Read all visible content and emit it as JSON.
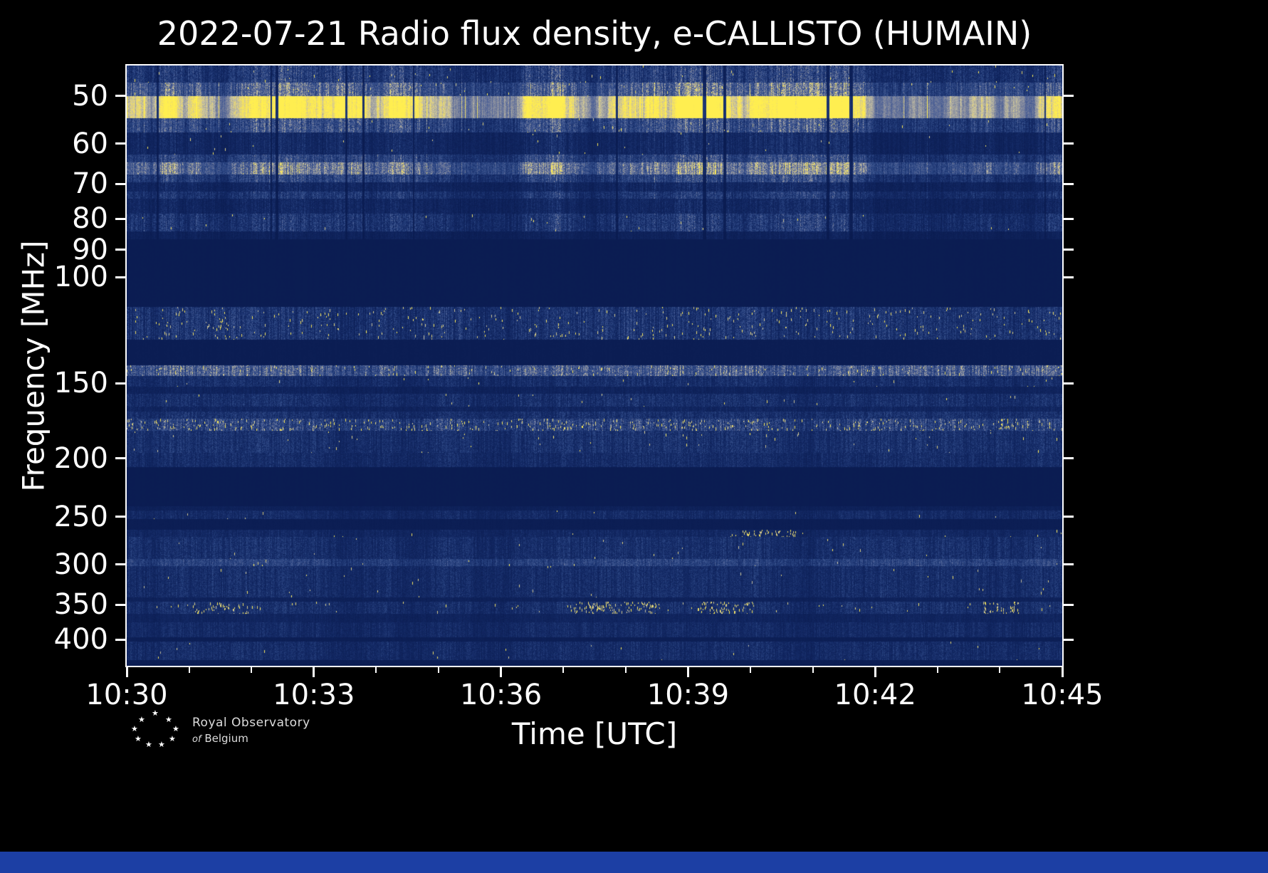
{
  "title": "2022-07-21 Radio flux density, e-CALLISTO (HUMAIN)",
  "xlabel": "Time [UTC]",
  "ylabel": "Frequency [MHz]",
  "logo": {
    "star_glyph": "★",
    "line1": "Royal Observatory",
    "line2_italic": "of",
    "line2_rest": "Belgium"
  },
  "colors": {
    "figure_background": "#000000",
    "text": "#ffffff",
    "bottom_bar": "#1c3fa4",
    "quiet_navy": "#0a1c52",
    "bright_yellow": "#ffee50"
  },
  "chart_data": {
    "type": "heatmap",
    "subtype": "radio-spectrogram",
    "title": "2022-07-21 Radio flux density, e-CALLISTO (HUMAIN)",
    "date": "2022-07-21",
    "instrument": "e-CALLISTO",
    "station": "HUMAIN",
    "xlabel": "Time [UTC]",
    "ylabel": "Frequency [MHz]",
    "x_start": "10:30",
    "x_end": "10:45",
    "duration_min": 15,
    "x_ticks": [
      {
        "min": 0,
        "label": "10:30"
      },
      {
        "min": 3,
        "label": "10:33"
      },
      {
        "min": 6,
        "label": "10:36"
      },
      {
        "min": 9,
        "label": "10:39"
      },
      {
        "min": 12,
        "label": "10:42"
      },
      {
        "min": 15,
        "label": "10:45"
      }
    ],
    "x_minor_every_min": 1,
    "y_scale": "log",
    "y_axis_inverted_low_at_top": true,
    "freq_min": 44.5,
    "freq_max": 442,
    "y_ticks": [
      {
        "f": 50,
        "label": "50"
      },
      {
        "f": 60,
        "label": "60"
      },
      {
        "f": 70,
        "label": "70"
      },
      {
        "f": 80,
        "label": "80"
      },
      {
        "f": 90,
        "label": "90"
      },
      {
        "f": 100,
        "label": "100"
      },
      {
        "f": 150,
        "label": "150"
      },
      {
        "f": 200,
        "label": "200"
      },
      {
        "f": 250,
        "label": "250"
      },
      {
        "f": 300,
        "label": "300"
      },
      {
        "f": 350,
        "label": "350"
      },
      {
        "f": 400,
        "label": "400"
      }
    ],
    "legend": "none",
    "grid": false,
    "colormap": [
      [
        0.0,
        "#091a4e"
      ],
      [
        0.18,
        "#142a66"
      ],
      [
        0.35,
        "#2c4784"
      ],
      [
        0.5,
        "#4b5f95"
      ],
      [
        0.65,
        "#8a8fa0"
      ],
      [
        0.8,
        "#c9c3a2"
      ],
      [
        0.9,
        "#ecd96e"
      ],
      [
        1.0,
        "#ffee50"
      ]
    ],
    "background_level": 0.03,
    "seed": 20220721,
    "bands": [
      {
        "f_start": 44.5,
        "f_end": 47.5,
        "level": 0.3,
        "col_var": 0.35,
        "pix_var": 0.5,
        "speckle": 0.001,
        "region": "top"
      },
      {
        "f_start": 47.5,
        "f_end": 50.0,
        "level": 0.5,
        "col_var": 0.3,
        "pix_var": 0.35,
        "speckle": 0.002,
        "region": "top"
      },
      {
        "f_start": 50.0,
        "f_end": 54.5,
        "level": 0.97,
        "col_var": 0.07,
        "pix_var": 0.1,
        "speckle": 0.0,
        "region": "top"
      },
      {
        "f_start": 54.5,
        "f_end": 57.5,
        "level": 0.4,
        "col_var": 0.3,
        "pix_var": 0.4,
        "speckle": 0.001,
        "region": "top"
      },
      {
        "f_start": 57.5,
        "f_end": 62.5,
        "level": 0.17,
        "col_var": 0.35,
        "pix_var": 0.45,
        "speckle": 0.0005,
        "region": "top"
      },
      {
        "f_start": 62.5,
        "f_end": 64.5,
        "level": 0.34,
        "col_var": 0.3,
        "pix_var": 0.4,
        "speckle": 0.0,
        "region": "top"
      },
      {
        "f_start": 64.5,
        "f_end": 67.5,
        "level": 0.58,
        "col_var": 0.25,
        "pix_var": 0.3,
        "speckle": 0.0,
        "region": "top"
      },
      {
        "f_start": 67.5,
        "f_end": 69.5,
        "level": 0.33,
        "col_var": 0.3,
        "pix_var": 0.4,
        "speckle": 0.0,
        "region": "top"
      },
      {
        "f_start": 69.5,
        "f_end": 72.0,
        "level": 0.15,
        "col_var": 0.35,
        "pix_var": 0.5,
        "speckle": 0.0,
        "region": "top"
      },
      {
        "f_start": 72.0,
        "f_end": 74.0,
        "level": 0.26,
        "col_var": 0.3,
        "pix_var": 0.45,
        "speckle": 0.0,
        "region": "top"
      },
      {
        "f_start": 74.0,
        "f_end": 78.5,
        "level": 0.15,
        "col_var": 0.35,
        "pix_var": 0.5,
        "speckle": 0.0,
        "region": "top"
      },
      {
        "f_start": 78.5,
        "f_end": 84.0,
        "level": 0.26,
        "col_var": 0.35,
        "pix_var": 0.5,
        "speckle": 0.0008,
        "region": "top"
      },
      {
        "f_start": 84.0,
        "f_end": 86.5,
        "level": 0.1,
        "col_var": 0.3,
        "pix_var": 0.4,
        "speckle": 0.0,
        "region": "top"
      },
      {
        "f_start": 86.5,
        "f_end": 112.0,
        "level": 0.035,
        "col_var": 0.08,
        "pix_var": 0.12,
        "speckle": 0.0,
        "region": "none"
      },
      {
        "f_start": 112.0,
        "f_end": 127.0,
        "level": 0.22,
        "col_var": 0.4,
        "pix_var": 0.5,
        "speckle": 0.006,
        "region": "mid"
      },
      {
        "f_start": 127.0,
        "f_end": 140.0,
        "level": 0.045,
        "col_var": 0.1,
        "pix_var": 0.15,
        "speckle": 0.0,
        "region": "none"
      },
      {
        "f_start": 140.0,
        "f_end": 146.0,
        "level": 0.42,
        "col_var": 0.35,
        "pix_var": 0.4,
        "speckle": 0.008,
        "region": "mid"
      },
      {
        "f_start": 146.0,
        "f_end": 152.0,
        "level": 0.18,
        "col_var": 0.3,
        "pix_var": 0.45,
        "speckle": 0.0008,
        "region": "mid"
      },
      {
        "f_start": 152.0,
        "f_end": 156.0,
        "level": 0.1,
        "col_var": 0.3,
        "pix_var": 0.4,
        "speckle": 0.0,
        "region": "mid"
      },
      {
        "f_start": 156.0,
        "f_end": 164.0,
        "level": 0.19,
        "col_var": 0.3,
        "pix_var": 0.45,
        "speckle": 0.0008,
        "region": "mid"
      },
      {
        "f_start": 164.0,
        "f_end": 167.0,
        "level": 0.12,
        "col_var": 0.3,
        "pix_var": 0.4,
        "speckle": 0.0,
        "region": "mid"
      },
      {
        "f_start": 167.0,
        "f_end": 172.0,
        "level": 0.2,
        "col_var": 0.3,
        "pix_var": 0.45,
        "speckle": 0.0,
        "region": "mid"
      },
      {
        "f_start": 172.0,
        "f_end": 180.0,
        "level": 0.3,
        "col_var": 0.4,
        "pix_var": 0.5,
        "speckle": 0.02,
        "region": "mid"
      },
      {
        "f_start": 180.0,
        "f_end": 196.0,
        "level": 0.2,
        "col_var": 0.3,
        "pix_var": 0.45,
        "speckle": 0.0012,
        "region": "mid"
      },
      {
        "f_start": 196.0,
        "f_end": 207.0,
        "level": 0.17,
        "col_var": 0.3,
        "pix_var": 0.45,
        "speckle": 0.0,
        "region": "mid"
      },
      {
        "f_start": 207.0,
        "f_end": 240.0,
        "level": 0.035,
        "col_var": 0.08,
        "pix_var": 0.12,
        "speckle": 0.0,
        "region": "none"
      },
      {
        "f_start": 240.0,
        "f_end": 244.0,
        "level": 0.08,
        "col_var": 0.2,
        "pix_var": 0.3,
        "speckle": 0.0,
        "region": "mid"
      },
      {
        "f_start": 244.0,
        "f_end": 252.0,
        "level": 0.16,
        "col_var": 0.3,
        "pix_var": 0.4,
        "speckle": 0.0006,
        "region": "mid"
      },
      {
        "f_start": 252.0,
        "f_end": 263.0,
        "level": 0.05,
        "col_var": 0.15,
        "pix_var": 0.2,
        "speckle": 0.0,
        "region": "none"
      },
      {
        "f_start": 263.0,
        "f_end": 270.0,
        "level": 0.14,
        "col_var": 0.3,
        "pix_var": 0.4,
        "speckle": 0.0008,
        "region": "mid",
        "bursts": [
          [
            0.68,
            0.035,
            0.05
          ]
        ]
      },
      {
        "f_start": 270.0,
        "f_end": 294.0,
        "level": 0.19,
        "col_var": 0.3,
        "pix_var": 0.45,
        "speckle": 0.0006,
        "region": "mid"
      },
      {
        "f_start": 294.0,
        "f_end": 302.0,
        "level": 0.3,
        "col_var": 0.25,
        "pix_var": 0.35,
        "speckle": 0.001,
        "region": "mid"
      },
      {
        "f_start": 302.0,
        "f_end": 340.0,
        "level": 0.18,
        "col_var": 0.3,
        "pix_var": 0.45,
        "speckle": 0.0006,
        "region": "mid"
      },
      {
        "f_start": 340.0,
        "f_end": 346.0,
        "level": 0.09,
        "col_var": 0.2,
        "pix_var": 0.3,
        "speckle": 0.0,
        "region": "mid"
      },
      {
        "f_start": 346.0,
        "f_end": 362.0,
        "level": 0.19,
        "col_var": 0.3,
        "pix_var": 0.45,
        "speckle": 0.002,
        "region": "mid",
        "bursts": [
          [
            0.1,
            0.03,
            0.04
          ],
          [
            0.52,
            0.05,
            0.05
          ],
          [
            0.64,
            0.03,
            0.05
          ],
          [
            0.935,
            0.02,
            0.06
          ]
        ]
      },
      {
        "f_start": 362.0,
        "f_end": 374.0,
        "level": 0.11,
        "col_var": 0.25,
        "pix_var": 0.35,
        "speckle": 0.0,
        "region": "mid"
      },
      {
        "f_start": 374.0,
        "f_end": 396.0,
        "level": 0.16,
        "col_var": 0.3,
        "pix_var": 0.4,
        "speckle": 0.0,
        "region": "mid"
      },
      {
        "f_start": 396.0,
        "f_end": 403.0,
        "level": 0.06,
        "col_var": 0.15,
        "pix_var": 0.2,
        "speckle": 0.0,
        "region": "none"
      },
      {
        "f_start": 403.0,
        "f_end": 432.0,
        "level": 0.17,
        "col_var": 0.3,
        "pix_var": 0.45,
        "speckle": 0.0006,
        "region": "mid"
      },
      {
        "f_start": 432.0,
        "f_end": 442.0,
        "level": 0.05,
        "col_var": 0.1,
        "pix_var": 0.15,
        "speckle": 0.0,
        "region": "none"
      }
    ]
  }
}
